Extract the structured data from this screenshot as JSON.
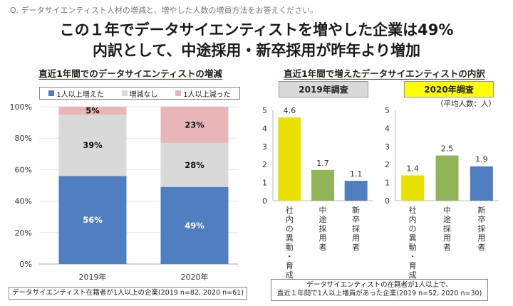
{
  "question": "Q. データサイエンティスト人材の増減と、増やした人数の増員方法をお答えください。",
  "headline": {
    "line1": "この１年でデータサイエンティストを増やした企業は49%",
    "line2": "内訳として、中途採用・新卒採用が昨年より増加"
  },
  "left_panel": {
    "subtitle": "直近1年間でのデータサイエンティストの増減",
    "legend": [
      {
        "label": "1人以上増えた",
        "color": "#4f7fc0"
      },
      {
        "label": "増減なし",
        "color": "#d9d9d9"
      },
      {
        "label": "1人以上減った",
        "color": "#e8b6b8"
      }
    ],
    "note": "データサイエンティスト在籍者が1人以上の企業(2019 n=82, 2020 n=61)"
  },
  "right_panel": {
    "subtitle": "直近1年間で増えたデータサイエンティストの内訳",
    "badge_2019": "2019年調査",
    "badge_2020": "2020年調査",
    "unit_label": "（平均人数：人）",
    "note_line1": "データサイエンティストの在籍者が1人以上で、",
    "note_line2": "直近１年間で1人以上増員があった企業(2019 n=52, 2020 n=30)"
  },
  "chart_data": [
    {
      "type": "bar",
      "stacked": true,
      "title": "直近1年間でのデータサイエンティストの増減",
      "categories": [
        "2019年",
        "2020年"
      ],
      "series": [
        {
          "name": "1人以上増えた",
          "values": [
            56,
            49
          ],
          "color": "#4f7fc0"
        },
        {
          "name": "増減なし",
          "values": [
            39,
            28
          ],
          "color": "#d9d9d9"
        },
        {
          "name": "1人以上減った",
          "values": [
            5,
            23
          ],
          "color": "#e8b6b8"
        }
      ],
      "ylim": [
        0,
        100
      ],
      "yticks": [
        "0%",
        "20%",
        "40%",
        "60%",
        "80%",
        "100%"
      ]
    },
    {
      "type": "bar",
      "title": "2019年調査",
      "categories": [
        "社内の異動・育成",
        "中途採用者",
        "新卒採用者"
      ],
      "values": [
        4.6,
        1.7,
        1.1
      ],
      "labels": [
        "4.6",
        "1.7",
        "1.1"
      ],
      "colors": [
        "#e8e000",
        "#93b55a",
        "#4f7fc0"
      ],
      "ylim": [
        0,
        5
      ],
      "yticks": [
        "0",
        "1",
        "2",
        "3",
        "4",
        "5"
      ]
    },
    {
      "type": "bar",
      "title": "2020年調査",
      "categories": [
        "社内の異動・育成",
        "中途採用者",
        "新卒採用者"
      ],
      "values": [
        1.4,
        2.5,
        1.9
      ],
      "labels": [
        "1.4",
        "2.5",
        "1.9"
      ],
      "colors": [
        "#e8e000",
        "#93b55a",
        "#4f7fc0"
      ],
      "ylim": [
        0,
        5
      ],
      "yticks": [
        "0",
        "1",
        "2",
        "3",
        "4",
        "5"
      ]
    }
  ]
}
